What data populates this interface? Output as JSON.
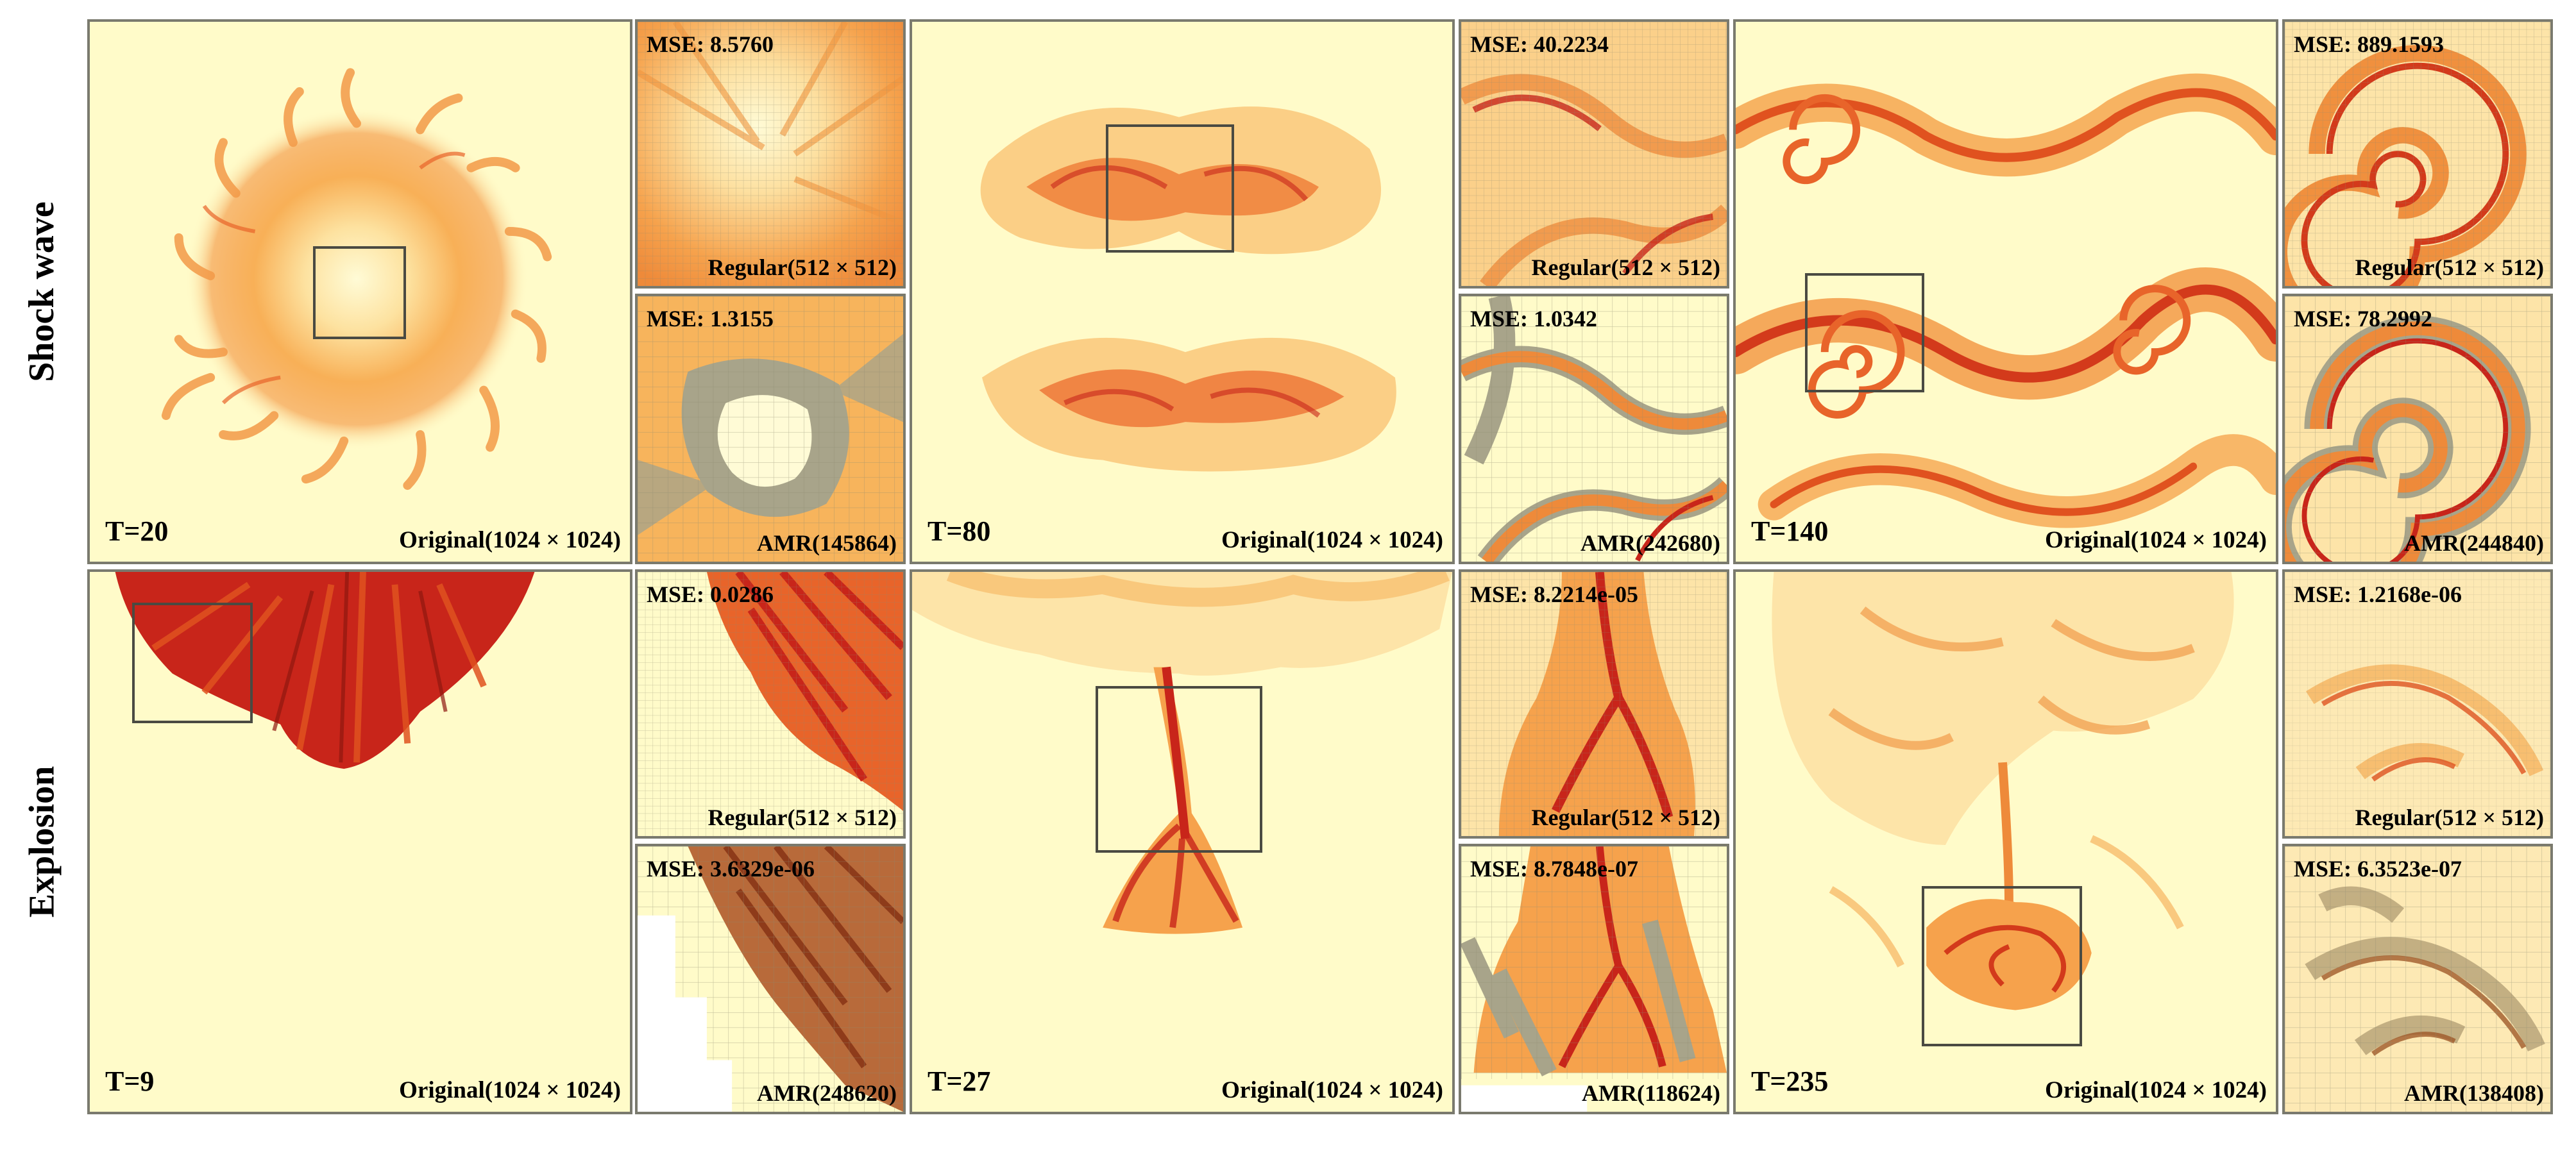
{
  "rows": [
    {
      "label": "Shock wave"
    },
    {
      "label": "Explosion"
    }
  ],
  "panels": {
    "sw_20": {
      "time": "T=20",
      "original": "Original(1024 × 1024)",
      "regular": "Regular(512 × 512)",
      "regular_mse": "MSE: 8.5760",
      "amr": "AMR(145864)",
      "amr_mse": "MSE: 1.3155"
    },
    "sw_80": {
      "time": "T=80",
      "original": "Original(1024 × 1024)",
      "regular": "Regular(512 × 512)",
      "regular_mse": "MSE: 40.2234",
      "amr": "AMR(242680)",
      "amr_mse": "MSE: 1.0342"
    },
    "sw_140": {
      "time": "T=140",
      "original": "Original(1024 × 1024)",
      "regular": "Regular(512 × 512)",
      "regular_mse": "MSE: 889.1593",
      "amr": "AMR(244840)",
      "amr_mse": "MSE: 78.2992"
    },
    "ex_9": {
      "time": "T=9",
      "original": "Original(1024 × 1024)",
      "regular": "Regular(512 × 512)",
      "regular_mse": "MSE: 0.0286",
      "amr": "AMR(248620)",
      "amr_mse": "MSE: 3.6329e-06"
    },
    "ex_27": {
      "time": "T=27",
      "original": "Original(1024 × 1024)",
      "regular": "Regular(512 × 512)",
      "regular_mse": "MSE: 8.2214e-05",
      "amr": "AMR(118624)",
      "amr_mse": "MSE: 8.7848e-07"
    },
    "ex_235": {
      "time": "T=235",
      "original": "Original(1024 × 1024)",
      "regular": "Regular(512 × 512)",
      "regular_mse": "MSE: 1.2168e-06",
      "amr": "AMR(138408)",
      "amr_mse": "MSE: 6.3523e-07"
    }
  },
  "colors": {
    "background": "#fffbc9",
    "light_orange": "#fdd58a",
    "orange": "#f7a54a",
    "dark_orange": "#e8642a",
    "red": "#c8251a",
    "grey_refine": "#a8a48a",
    "frame": "#7a7a6e"
  }
}
